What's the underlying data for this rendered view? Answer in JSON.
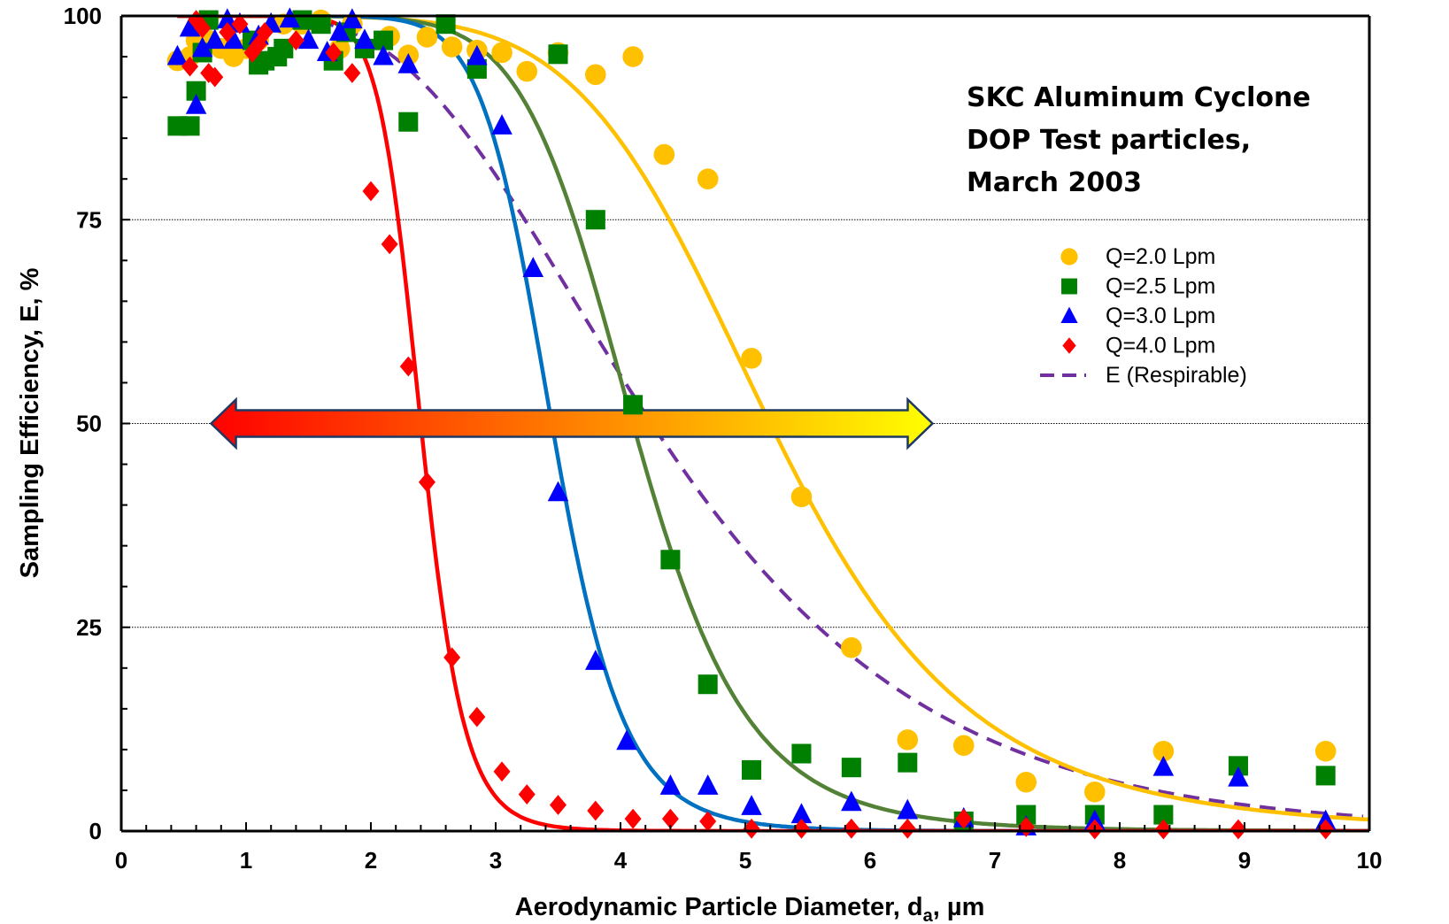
{
  "chart_data": {
    "type": "scatter",
    "title": "",
    "annotation_lines": [
      "SKC Aluminum Cyclone",
      "DOP Test particles,",
      "March 2003"
    ],
    "xlabel_main": "Aerodynamic  Particle Diameter, d",
    "xlabel_sub": "a",
    "xlabel_tail": ", µm",
    "ylabel": "Sampling Efficiency, E, %",
    "xlim": [
      0,
      10
    ],
    "ylim": [
      0,
      100
    ],
    "x_ticks": [
      "0",
      "1",
      "2",
      "3",
      "4",
      "5",
      "6",
      "7",
      "8",
      "9",
      "10"
    ],
    "y_ticks": [
      "0",
      "25",
      "50",
      "75",
      "100"
    ],
    "grid": "horizontal dotted at 25, 50, 75",
    "legend_position": "right",
    "legend": [
      "Q=2.0 Lpm",
      "Q=2.5 Lpm",
      "Q=3.0 Lpm",
      "Q=4.0 Lpm",
      "E (Respirable)"
    ],
    "series": [
      {
        "name": "Q=2.0 Lpm",
        "marker": "circle",
        "color": "#FFC000",
        "points": [
          [
            0.45,
            94.5
          ],
          [
            0.55,
            95
          ],
          [
            0.6,
            97
          ],
          [
            0.65,
            96
          ],
          [
            0.7,
            97
          ],
          [
            0.8,
            96
          ],
          [
            0.9,
            95
          ],
          [
            1.0,
            96
          ],
          [
            1.1,
            97
          ],
          [
            1.3,
            99
          ],
          [
            1.45,
            99
          ],
          [
            1.6,
            99.5
          ],
          [
            1.75,
            96
          ],
          [
            1.85,
            99
          ],
          [
            2.15,
            97.5
          ],
          [
            2.3,
            95.2
          ],
          [
            2.45,
            97.4
          ],
          [
            2.65,
            96.2
          ],
          [
            2.85,
            95.8
          ],
          [
            3.05,
            95.5
          ],
          [
            3.25,
            93.2
          ],
          [
            3.5,
            95.5
          ],
          [
            3.8,
            92.8
          ],
          [
            4.1,
            95
          ],
          [
            4.35,
            83
          ],
          [
            4.7,
            80
          ],
          [
            5.05,
            58
          ],
          [
            5.45,
            41
          ],
          [
            5.85,
            22.5
          ],
          [
            6.3,
            11.2
          ],
          [
            6.75,
            10.5
          ],
          [
            7.25,
            6
          ],
          [
            7.8,
            4.8
          ],
          [
            8.35,
            9.8
          ],
          [
            9.65,
            9.8
          ]
        ],
        "fit_x50": 5.2,
        "fit_slope": 6.5
      },
      {
        "name": "Q=2.5 Lpm",
        "marker": "square",
        "color": "#008000",
        "points": [
          [
            0.45,
            86.5
          ],
          [
            0.55,
            86.5
          ],
          [
            0.6,
            90.8
          ],
          [
            0.65,
            95.5
          ],
          [
            0.7,
            99.5
          ],
          [
            1.05,
            97
          ],
          [
            1.1,
            94
          ],
          [
            1.15,
            94.5
          ],
          [
            1.25,
            95
          ],
          [
            1.3,
            96
          ],
          [
            1.45,
            99.5
          ],
          [
            1.6,
            99
          ],
          [
            1.7,
            94.5
          ],
          [
            1.8,
            98
          ],
          [
            1.95,
            96
          ],
          [
            2.1,
            97
          ],
          [
            2.3,
            87
          ],
          [
            2.6,
            99
          ],
          [
            2.85,
            93.5
          ],
          [
            3.5,
            95.3
          ],
          [
            3.8,
            75
          ],
          [
            4.1,
            52.3
          ],
          [
            4.4,
            33.3
          ],
          [
            4.7,
            18
          ],
          [
            5.05,
            7.5
          ],
          [
            5.45,
            9.5
          ],
          [
            5.85,
            7.8
          ],
          [
            6.3,
            8.4
          ],
          [
            6.75,
            1.2
          ],
          [
            7.25,
            2
          ],
          [
            7.8,
            2
          ],
          [
            8.35,
            2
          ],
          [
            8.95,
            8
          ],
          [
            9.65,
            6.8
          ]
        ],
        "fit_x50": 4.1,
        "fit_slope": 9
      },
      {
        "name": "Q=3.0 Lpm",
        "marker": "triangle",
        "color": "#0000FF",
        "points": [
          [
            0.45,
            95
          ],
          [
            0.55,
            98.5
          ],
          [
            0.6,
            89
          ],
          [
            0.65,
            96
          ],
          [
            0.75,
            97
          ],
          [
            0.85,
            99.5
          ],
          [
            0.9,
            97
          ],
          [
            0.95,
            99
          ],
          [
            1.1,
            97.5
          ],
          [
            1.2,
            99
          ],
          [
            1.35,
            99.6
          ],
          [
            1.5,
            97
          ],
          [
            1.65,
            95.5
          ],
          [
            1.75,
            98
          ],
          [
            1.85,
            99.5
          ],
          [
            1.95,
            97
          ],
          [
            2.1,
            95
          ],
          [
            2.3,
            94
          ],
          [
            2.85,
            95
          ],
          [
            3.05,
            86.5
          ],
          [
            3.3,
            69
          ],
          [
            3.5,
            41.5
          ],
          [
            3.8,
            20.8
          ],
          [
            4.05,
            11
          ],
          [
            4.4,
            5.5
          ],
          [
            4.7,
            5.5
          ],
          [
            5.05,
            3
          ],
          [
            5.45,
            2
          ],
          [
            5.85,
            3.5
          ],
          [
            6.3,
            2.5
          ],
          [
            6.75,
            1.5
          ],
          [
            7.25,
            0.5
          ],
          [
            7.8,
            1.2
          ],
          [
            8.35,
            7.8
          ],
          [
            8.95,
            6.5
          ],
          [
            9.65,
            1.2
          ]
        ],
        "fit_x50": 3.45,
        "fit_slope": 12
      },
      {
        "name": "Q=4.0 Lpm",
        "marker": "diamond",
        "color": "#FF0000",
        "points": [
          [
            0.55,
            93.8
          ],
          [
            0.6,
            99.5
          ],
          [
            0.65,
            98.5
          ],
          [
            0.7,
            93
          ],
          [
            0.75,
            92.5
          ],
          [
            0.85,
            98
          ],
          [
            0.95,
            99
          ],
          [
            1.05,
            95.5
          ],
          [
            1.1,
            96.5
          ],
          [
            1.15,
            98
          ],
          [
            1.4,
            97
          ],
          [
            1.7,
            95.5
          ],
          [
            1.85,
            93
          ],
          [
            2.0,
            78.5
          ],
          [
            2.15,
            72
          ],
          [
            2.3,
            57
          ],
          [
            2.45,
            42.8
          ],
          [
            2.65,
            21.3
          ],
          [
            2.85,
            14
          ],
          [
            3.05,
            7.3
          ],
          [
            3.25,
            4.5
          ],
          [
            3.5,
            3.2
          ],
          [
            3.8,
            2.5
          ],
          [
            4.1,
            1.5
          ],
          [
            4.4,
            1.5
          ],
          [
            4.7,
            1.2
          ],
          [
            5.05,
            0.3
          ],
          [
            5.45,
            0.3
          ],
          [
            5.85,
            0.3
          ],
          [
            6.3,
            0.3
          ],
          [
            6.75,
            1.5
          ],
          [
            7.25,
            0.5
          ],
          [
            7.8,
            0
          ],
          [
            8.35,
            0
          ],
          [
            8.95,
            0
          ],
          [
            9.65,
            0
          ]
        ],
        "fit_x50": 2.4,
        "fit_slope": 14
      }
    ],
    "reference_curve": {
      "name": "E (Respirable)",
      "style": "dashed",
      "color": "#7030A0",
      "x50": 4.25,
      "sigma": 1.5
    }
  },
  "arrow": {
    "color_left": "#FF0000",
    "color_right": "#FFFF00",
    "outline": "#1F3864",
    "from_x": 0.72,
    "to_x": 6.5,
    "at_y": 50
  },
  "colors": {
    "axis": "#000000",
    "grid": "#000000",
    "fit_Q2_0": "#FFC000",
    "fit_Q2_5": "#538135",
    "fit_Q3_0": "#0070C0",
    "fit_Q4_0": "#FF0000"
  }
}
